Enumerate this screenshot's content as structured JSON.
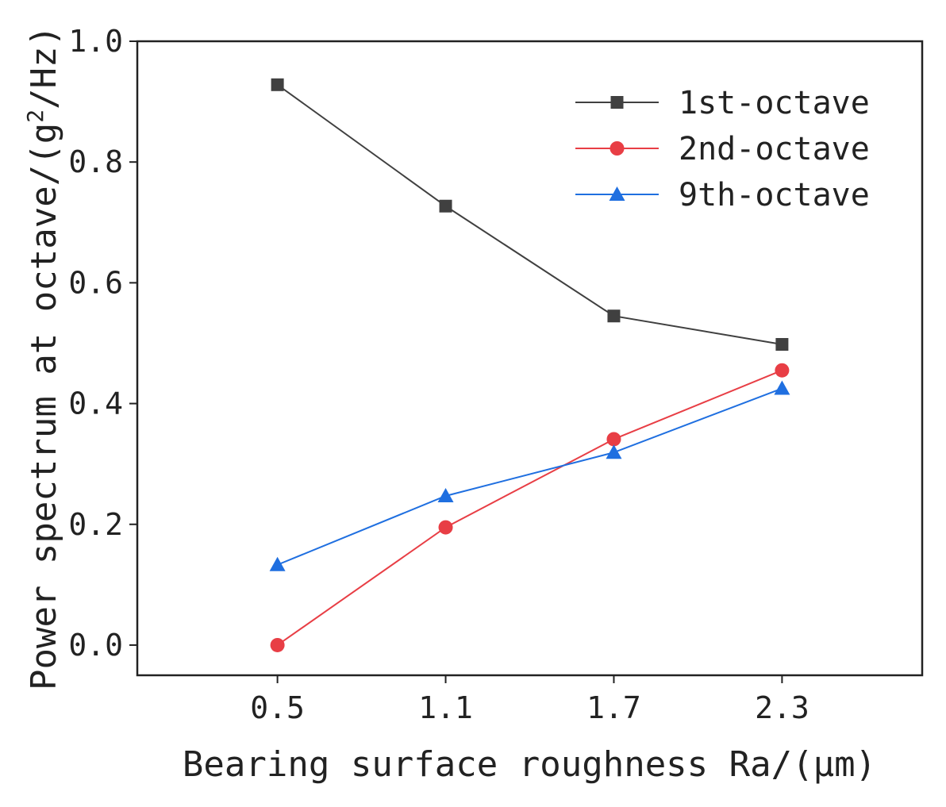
{
  "chart_data": {
    "type": "line",
    "title": "",
    "xlabel": "Bearing surface roughness Ra/(μm)",
    "ylabel_prefix": "Power spectrum at octave/(g",
    "ylabel_sup": "2",
    "ylabel_suffix": "/Hz)",
    "x": [
      0.5,
      1.1,
      1.7,
      2.3
    ],
    "x_tick_labels": [
      "0.5",
      "1.1",
      "1.7",
      "2.3"
    ],
    "y_tick_labels": [
      "0.0",
      "0.2",
      "0.4",
      "0.6",
      "0.8",
      "1.0"
    ],
    "y_ticks": [
      0.0,
      0.2,
      0.4,
      0.6,
      0.8,
      1.0
    ],
    "xlim": [
      0.0,
      2.8
    ],
    "ylim": [
      -0.05,
      1.0
    ],
    "legend_position": "top-right",
    "grid": false,
    "series": [
      {
        "name": "1st-octave",
        "color": "#404040",
        "marker": "square",
        "values": [
          0.928,
          0.727,
          0.545,
          0.498
        ]
      },
      {
        "name": "2nd-octave",
        "color": "#e83e45",
        "marker": "circle",
        "values": [
          0.0,
          0.195,
          0.341,
          0.455
        ]
      },
      {
        "name": "9th-octave",
        "color": "#1f6fe0",
        "marker": "triangle",
        "values": [
          0.133,
          0.247,
          0.319,
          0.425
        ]
      }
    ]
  }
}
